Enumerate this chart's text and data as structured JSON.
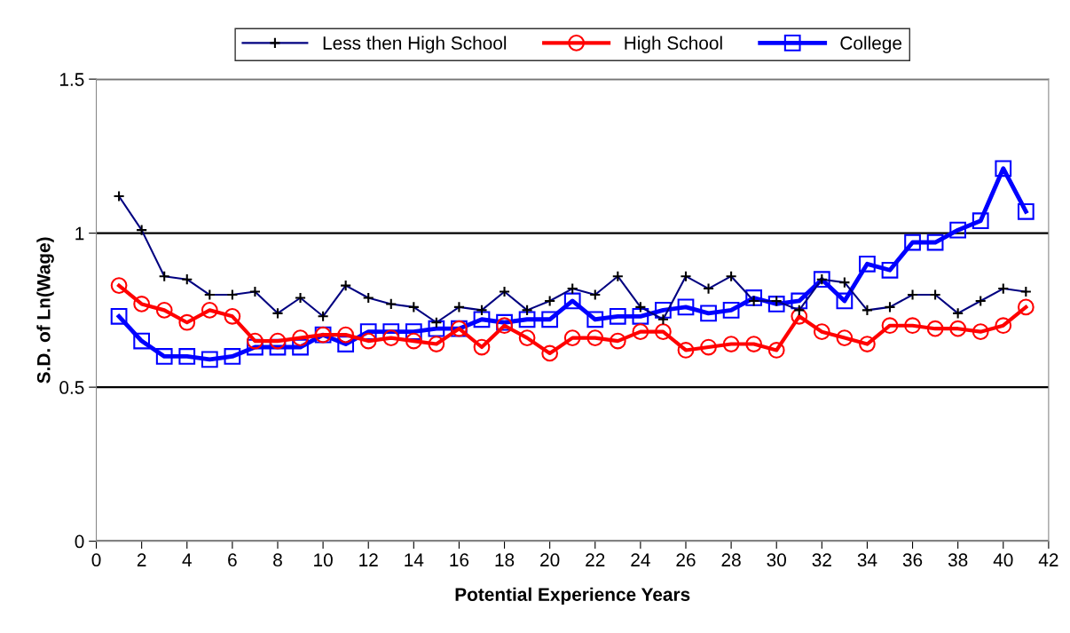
{
  "chart_data": {
    "type": "line",
    "xlabel": "Potential Experience Years",
    "ylabel": "S.D. of Ln(Wage)",
    "x": [
      1,
      2,
      3,
      4,
      5,
      6,
      7,
      8,
      9,
      10,
      11,
      12,
      13,
      14,
      15,
      16,
      17,
      18,
      19,
      20,
      21,
      22,
      23,
      24,
      25,
      26,
      27,
      28,
      29,
      30,
      31,
      32,
      33,
      34,
      35,
      36,
      37,
      38,
      39,
      40,
      41
    ],
    "series": [
      {
        "name": "Less then High School",
        "color": "#000080",
        "marker": "cross",
        "values": [
          1.12,
          1.01,
          0.86,
          0.85,
          0.8,
          0.8,
          0.81,
          0.74,
          0.79,
          0.73,
          0.83,
          0.79,
          0.77,
          0.76,
          0.71,
          0.76,
          0.75,
          0.81,
          0.75,
          0.78,
          0.82,
          0.8,
          0.86,
          0.76,
          0.72,
          0.86,
          0.82,
          0.86,
          0.78,
          0.78,
          0.75,
          0.85,
          0.84,
          0.75,
          0.76,
          0.8,
          0.8,
          0.74,
          0.78,
          0.82,
          0.81
        ]
      },
      {
        "name": "High School",
        "color": "#ff0000",
        "marker": "circle",
        "values": [
          0.83,
          0.77,
          0.75,
          0.71,
          0.75,
          0.73,
          0.65,
          0.65,
          0.66,
          0.67,
          0.67,
          0.65,
          0.66,
          0.65,
          0.64,
          0.69,
          0.63,
          0.7,
          0.66,
          0.61,
          0.66,
          0.66,
          0.65,
          0.68,
          0.68,
          0.62,
          0.63,
          0.64,
          0.64,
          0.62,
          0.73,
          0.68,
          0.66,
          0.64,
          0.7,
          0.7,
          0.69,
          0.69,
          0.68,
          0.7,
          0.76
        ]
      },
      {
        "name": "College",
        "color": "#0000ff",
        "marker": "square",
        "values": [
          0.73,
          0.65,
          0.6,
          0.6,
          0.59,
          0.6,
          0.63,
          0.63,
          0.63,
          0.67,
          0.64,
          0.68,
          0.68,
          0.68,
          0.69,
          0.69,
          0.72,
          0.71,
          0.72,
          0.72,
          0.78,
          0.72,
          0.73,
          0.73,
          0.75,
          0.76,
          0.74,
          0.75,
          0.79,
          0.77,
          0.78,
          0.85,
          0.78,
          0.9,
          0.88,
          0.97,
          0.97,
          1.01,
          1.04,
          1.21,
          1.07
        ]
      }
    ],
    "xlim": [
      0,
      42
    ],
    "xticks": [
      0,
      2,
      4,
      6,
      8,
      10,
      12,
      14,
      16,
      18,
      20,
      22,
      24,
      26,
      28,
      30,
      32,
      34,
      36,
      38,
      40,
      42
    ],
    "ylim": [
      0,
      1.5
    ],
    "yticks": [
      0,
      0.5,
      1,
      1.5
    ],
    "grid": "y",
    "legend": "top",
    "line_style": "solid"
  }
}
